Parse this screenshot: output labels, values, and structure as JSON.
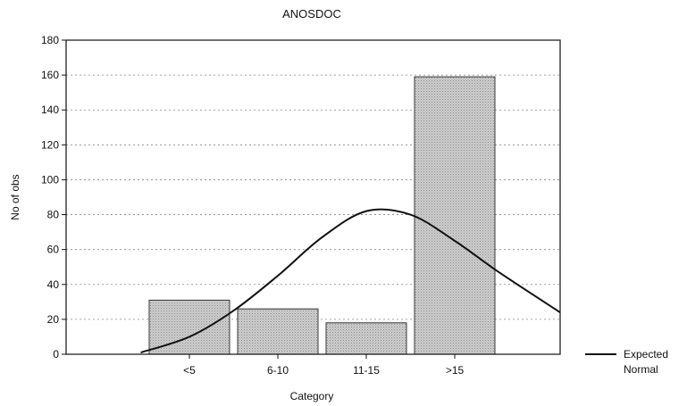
{
  "chart_data": {
    "type": "bar",
    "title": "ANOSDOC",
    "xlabel": "Category",
    "ylabel": "No of obs",
    "categories": [
      "<5",
      "6-10",
      "11-15",
      ">15"
    ],
    "values": [
      31,
      26,
      18,
      159
    ],
    "ylim": [
      0,
      180
    ],
    "yticks": [
      "0",
      "20",
      "40",
      "60",
      "80",
      "100",
      "120",
      "140",
      "160",
      "180"
    ],
    "grid": true,
    "legend": {
      "position": "bottom-right",
      "entries": [
        "Expected",
        "Normal"
      ]
    },
    "overlay": {
      "type": "line",
      "name": "Expected Normal",
      "x": [
        -0.55,
        0,
        0.5,
        1,
        1.5,
        2,
        2.5,
        3,
        3.5,
        4.2
      ],
      "y": [
        1,
        10,
        25,
        45,
        67,
        82,
        80,
        65,
        47,
        24
      ]
    },
    "colors": {
      "bar_fill": "#cfcfcf",
      "bar_stroke": "#333333",
      "line": "#111111",
      "grid": "#888888"
    }
  }
}
